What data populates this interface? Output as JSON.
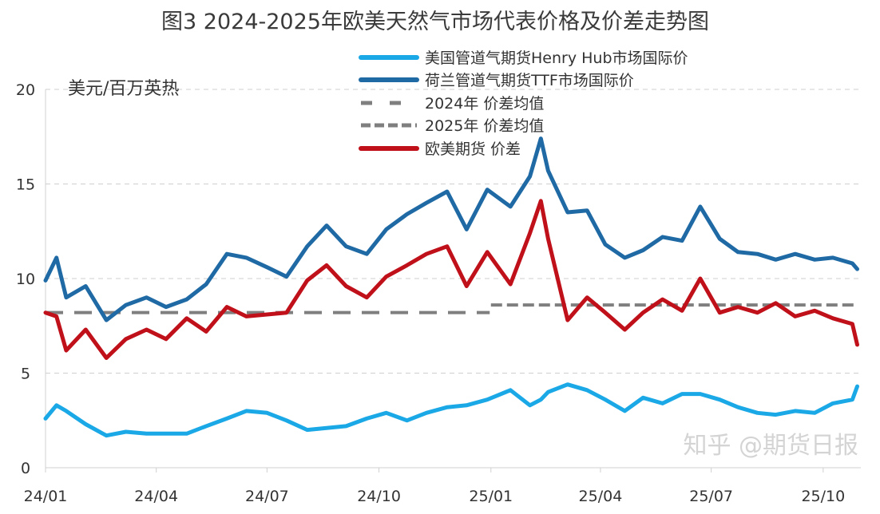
{
  "chart_data": {
    "type": "line",
    "title": "图3 2024-2025年欧美天然气市场代表价格及价差走势图",
    "ylabel": "美元/百万英热",
    "xlabel": "",
    "ylim": [
      0,
      20
    ],
    "yticks": [
      "0",
      "5",
      "10",
      "15",
      "20"
    ],
    "xticks": [
      {
        "label": "24/01",
        "date": "2024-01-01"
      },
      {
        "label": "24/04",
        "date": "2024-04-01"
      },
      {
        "label": "24/07",
        "date": "2024-07-01"
      },
      {
        "label": "24/10",
        "date": "2024-10-01"
      },
      {
        "label": "25/01",
        "date": "2025-01-01"
      },
      {
        "label": "25/04",
        "date": "2025-04-01"
      },
      {
        "label": "25/07",
        "date": "2025-07-01"
      },
      {
        "label": "25/10",
        "date": "2025-10-01"
      }
    ],
    "grid": true,
    "legend_position": "top-center",
    "x": [
      "2024-01-01",
      "2024-01-10",
      "2024-01-18",
      "2024-02-03",
      "2024-02-20",
      "2024-03-07",
      "2024-03-24",
      "2024-04-09",
      "2024-04-26",
      "2024-05-12",
      "2024-05-29",
      "2024-06-14",
      "2024-07-01",
      "2024-07-17",
      "2024-08-03",
      "2024-08-19",
      "2024-09-04",
      "2024-09-21",
      "2024-10-07",
      "2024-10-24",
      "2024-11-09",
      "2024-11-26",
      "2024-12-12",
      "2024-12-29",
      "2025-01-17",
      "2025-02-02",
      "2025-02-11",
      "2025-02-17",
      "2025-03-05",
      "2025-03-21",
      "2025-04-05",
      "2025-04-21",
      "2025-05-06",
      "2025-05-22",
      "2025-06-07",
      "2025-06-22",
      "2025-07-08",
      "2025-07-23",
      "2025-08-08",
      "2025-08-23",
      "2025-09-08",
      "2025-09-24",
      "2025-10-09",
      "2025-10-25",
      "2025-10-29"
    ],
    "series": [
      {
        "name": "美国管道气期货Henry Hub市场国际价",
        "color": "#1ba8e6",
        "style": "solid",
        "values": [
          2.6,
          3.3,
          3.0,
          2.3,
          1.7,
          1.9,
          1.8,
          1.8,
          1.8,
          2.2,
          2.6,
          3.0,
          2.9,
          2.5,
          2.0,
          2.1,
          2.2,
          2.6,
          2.9,
          2.5,
          2.9,
          3.2,
          3.3,
          3.6,
          4.1,
          3.3,
          3.6,
          4.0,
          4.4,
          4.1,
          3.6,
          3.0,
          3.7,
          3.4,
          3.9,
          3.9,
          3.6,
          3.2,
          2.9,
          2.8,
          3.0,
          2.9,
          3.4,
          3.6,
          4.3
        ]
      },
      {
        "name": "荷兰管道气期货TTF市场国际价",
        "color": "#1f6aa5",
        "style": "solid",
        "values": [
          9.9,
          11.1,
          9.0,
          9.6,
          7.8,
          8.6,
          9.0,
          8.5,
          8.9,
          9.7,
          11.3,
          11.1,
          10.6,
          10.1,
          11.7,
          12.8,
          11.7,
          11.3,
          12.6,
          13.4,
          14.0,
          14.6,
          12.6,
          14.7,
          13.8,
          15.4,
          17.4,
          15.7,
          13.5,
          13.6,
          11.8,
          11.1,
          11.5,
          12.2,
          12.0,
          13.8,
          12.1,
          11.4,
          11.3,
          11.0,
          11.3,
          11.0,
          11.1,
          10.8,
          10.5
        ]
      },
      {
        "name": "2024年 价差均值",
        "color": "#7f7f7f",
        "style": "long-dash",
        "value": 8.2,
        "range": [
          "2024-01-01",
          "2024-12-31"
        ]
      },
      {
        "name": "2025年 价差均值",
        "color": "#7f7f7f",
        "style": "short-dash",
        "value": 8.6,
        "range": [
          "2025-01-01",
          "2025-10-29"
        ]
      },
      {
        "name": "欧美期货 价差",
        "color": "#c0101a",
        "style": "solid",
        "values": [
          8.2,
          8.0,
          6.2,
          7.3,
          5.8,
          6.8,
          7.3,
          6.8,
          7.9,
          7.2,
          8.5,
          8.0,
          8.1,
          8.2,
          9.9,
          10.7,
          9.6,
          9.0,
          10.1,
          10.7,
          11.3,
          11.7,
          9.6,
          11.4,
          9.7,
          12.4,
          14.1,
          12.1,
          7.8,
          9.0,
          8.2,
          7.3,
          8.2,
          8.9,
          8.3,
          10.0,
          8.2,
          8.5,
          8.2,
          8.7,
          8.0,
          8.3,
          7.9,
          7.6,
          6.5
        ]
      }
    ]
  },
  "watermark": "知乎 @期货日报"
}
